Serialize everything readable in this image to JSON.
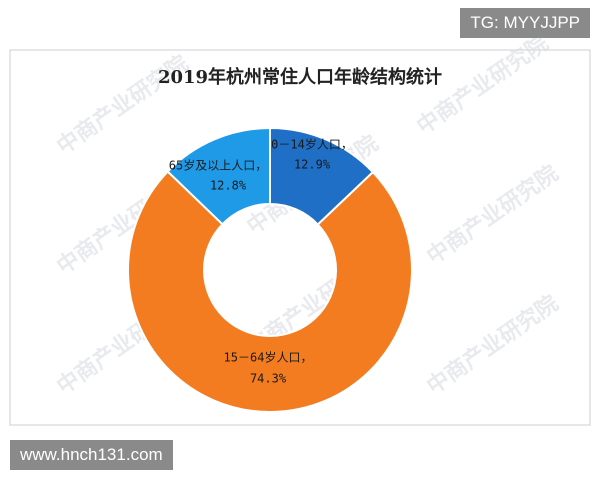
{
  "chart_data": {
    "type": "donut",
    "title": "2019年杭州常住人口年龄结构统计",
    "categories": [
      "0－14岁人口，",
      "15－64岁人口，",
      "65岁及以上人口，"
    ],
    "values": [
      12.9,
      74.3,
      12.8
    ],
    "value_labels": [
      "12.9%",
      "74.3%",
      "12.8%"
    ],
    "colors": [
      "#1f6fc6",
      "#f47c20",
      "#1e9ae6"
    ]
  },
  "watermark": "中商产业研究院",
  "top_tag": "TG: MYYJJPP",
  "bottom_tag": "www.hnch131.com"
}
